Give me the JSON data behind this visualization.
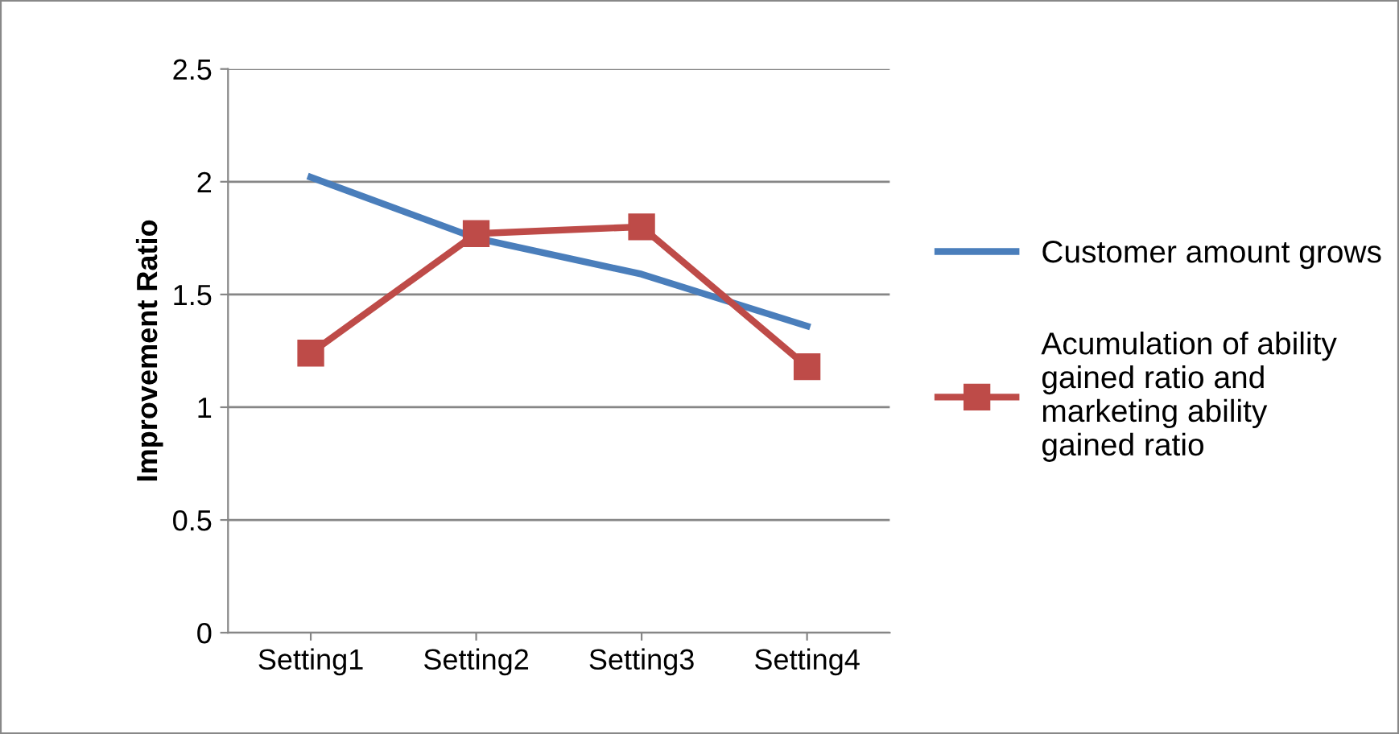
{
  "chart_data": {
    "type": "line",
    "ylabel": "Improvement Ratio",
    "categories": [
      "Setting1",
      "Setting2",
      "Setting3",
      "Setting4"
    ],
    "series": [
      {
        "name": "Customer amount grows",
        "color": "#4a7ebb",
        "values": [
          2.02,
          1.75,
          1.59,
          1.36
        ],
        "marker": "none"
      },
      {
        "name": "Acumulation of ability gained ratio and marketing ability gained ratio",
        "color": "#be4b48",
        "values": [
          1.24,
          1.77,
          1.8,
          1.18
        ],
        "marker": "square"
      }
    ],
    "ylim": [
      0,
      2.5
    ],
    "yticks": [
      0,
      0.5,
      1,
      1.5,
      2,
      2.5
    ],
    "grid": "y",
    "legend": "right",
    "line_style": "solid"
  }
}
